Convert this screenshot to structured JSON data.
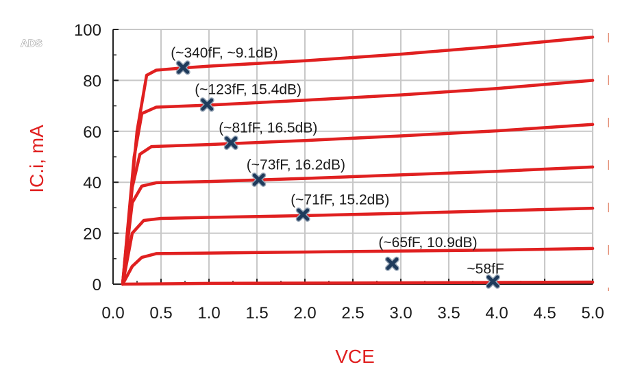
{
  "app_label": "ADS",
  "chart_data": {
    "type": "line",
    "xlabel": "VCE",
    "ylabel": "IC.i, mA",
    "xlim": [
      0.0,
      5.0
    ],
    "ylim": [
      0,
      100
    ],
    "x_ticks": [
      "0.0",
      "0.5",
      "1.0",
      "1.5",
      "2.0",
      "2.5",
      "3.0",
      "3.5",
      "4.0",
      "4.5",
      "5.0"
    ],
    "y_ticks": [
      "0",
      "20",
      "40",
      "60",
      "80",
      "100"
    ],
    "grid": true,
    "colors": {
      "curve": "#e02020",
      "axis_title": "#e02020",
      "marker": "#1f3b5c",
      "grid": "#c8c8c8"
    },
    "series": [
      {
        "points": [
          [
            0.1,
            0
          ],
          [
            0.25,
            60
          ],
          [
            0.35,
            82
          ],
          [
            0.45,
            84
          ],
          [
            0.73,
            84.9
          ],
          [
            1.0,
            85.6
          ],
          [
            2.0,
            87.7
          ],
          [
            3.0,
            90.3
          ],
          [
            4.0,
            93.4
          ],
          [
            5.0,
            97
          ]
        ]
      },
      {
        "points": [
          [
            0.1,
            0
          ],
          [
            0.22,
            50
          ],
          [
            0.3,
            67
          ],
          [
            0.45,
            69.5
          ],
          [
            1.0,
            70.3
          ],
          [
            2.0,
            72.2
          ],
          [
            3.0,
            74.3
          ],
          [
            4.0,
            76.8
          ],
          [
            5.0,
            80
          ]
        ]
      },
      {
        "points": [
          [
            0.1,
            0
          ],
          [
            0.2,
            38
          ],
          [
            0.28,
            51
          ],
          [
            0.4,
            54
          ],
          [
            1.0,
            54.8
          ],
          [
            2.0,
            56.4
          ],
          [
            3.0,
            58.2
          ],
          [
            4.0,
            60.2
          ],
          [
            5.0,
            62.7
          ]
        ]
      },
      {
        "points": [
          [
            0.1,
            0
          ],
          [
            0.2,
            32
          ],
          [
            0.3,
            38.5
          ],
          [
            0.45,
            39.8
          ],
          [
            1.0,
            40.3
          ],
          [
            2.0,
            41.5
          ],
          [
            3.0,
            42.9
          ],
          [
            4.0,
            44.3
          ],
          [
            5.0,
            46
          ]
        ]
      },
      {
        "points": [
          [
            0.1,
            0
          ],
          [
            0.2,
            20
          ],
          [
            0.32,
            25
          ],
          [
            0.5,
            25.8
          ],
          [
            1.0,
            26.2
          ],
          [
            2.0,
            26.9
          ],
          [
            3.0,
            27.8
          ],
          [
            4.0,
            28.8
          ],
          [
            5.0,
            29.8
          ]
        ]
      },
      {
        "points": [
          [
            0.1,
            0
          ],
          [
            0.2,
            7
          ],
          [
            0.3,
            10.5
          ],
          [
            0.45,
            12
          ],
          [
            1.0,
            12.2
          ],
          [
            2.0,
            12.6
          ],
          [
            3.0,
            13
          ],
          [
            4.0,
            13.4
          ],
          [
            5.0,
            14
          ]
        ]
      },
      {
        "points": [
          [
            0.1,
            0
          ],
          [
            1.0,
            0.3
          ],
          [
            3.0,
            0.5
          ],
          [
            5.0,
            0.8
          ]
        ]
      }
    ],
    "markers": [
      {
        "x": 0.73,
        "y": 85,
        "label": "(~340fF, ~9.1dB)"
      },
      {
        "x": 0.98,
        "y": 70.5,
        "label": "(~123fF, 15.4dB)"
      },
      {
        "x": 1.23,
        "y": 55.5,
        "label": "(~81fF, 16.5dB)"
      },
      {
        "x": 1.52,
        "y": 41,
        "label": "(~73fF, 16.2dB)"
      },
      {
        "x": 1.98,
        "y": 27.3,
        "label": "(~71fF, 15.2dB)"
      },
      {
        "x": 2.91,
        "y": 8,
        "label": "(~65fF, 10.9dB)"
      },
      {
        "x": 3.96,
        "y": 1,
        "label": "~58fF"
      }
    ]
  }
}
